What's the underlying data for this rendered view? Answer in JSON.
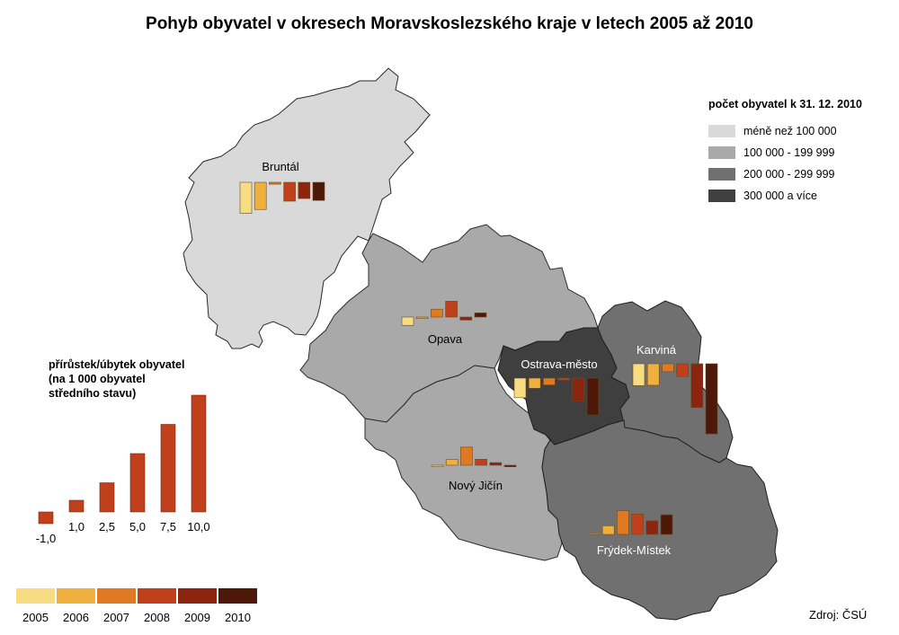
{
  "title": "Pohyb obyvatel v okresech Moravskoslezského kraje v letech 2005 až 2010",
  "population_legend": {
    "title": "počet obyvatel k 31. 12. 2010",
    "items": [
      {
        "label": "méně než 100 000",
        "color": "#d9d9d9"
      },
      {
        "label": "100 000 - 199 999",
        "color": "#a9a9a9"
      },
      {
        "label": "200 000 - 299 999",
        "color": "#707070"
      },
      {
        "label": "300 000 a více",
        "color": "#3f3f3f"
      }
    ]
  },
  "scale_legend": {
    "title_lines": [
      "přírůstek/úbytek obyvatel",
      "(na 1 000 obyvatel",
      "středního stavu)"
    ],
    "values": [
      -1.0,
      1.0,
      2.5,
      5.0,
      7.5,
      10.0
    ],
    "labels": [
      "-1,0",
      "1,0",
      "2,5",
      "5,0",
      "7,5",
      "10,0"
    ],
    "bar_color": "#c0401c"
  },
  "year_legend": {
    "years": [
      "2005",
      "2006",
      "2007",
      "2008",
      "2009",
      "2010"
    ],
    "colors": [
      "#f7dc83",
      "#f0b040",
      "#e07a22",
      "#c0401c",
      "#8b2510",
      "#4d1808"
    ]
  },
  "districts": [
    {
      "name": "Bruntál",
      "population_class": "méně než 100 000",
      "fill": "#d9d9d9"
    },
    {
      "name": "Opava",
      "population_class": "100 000 - 199 999",
      "fill": "#a9a9a9"
    },
    {
      "name": "Nový Jičín",
      "population_class": "100 000 - 199 999",
      "fill": "#a9a9a9"
    },
    {
      "name": "Ostrava-město",
      "population_class": "300 000 a více",
      "fill": "#3f3f3f"
    },
    {
      "name": "Karviná",
      "population_class": "200 000 - 299 999",
      "fill": "#707070"
    },
    {
      "name": "Frýdek-Místek",
      "population_class": "200 000 - 299 999",
      "fill": "#707070"
    }
  ],
  "chart_data": {
    "type": "bar",
    "categories": [
      "2005",
      "2006",
      "2007",
      "2008",
      "2009",
      "2010"
    ],
    "unit": "přírůstek/úbytek obyvatel (na 1 000 obyvatel středního stavu)",
    "series": [
      {
        "name": "Bruntál",
        "values": [
          -8.2,
          -7.2,
          -0.5,
          -5.0,
          -4.3,
          -4.8
        ]
      },
      {
        "name": "Opava",
        "values": [
          -2.2,
          -0.4,
          2.1,
          4.2,
          -0.8,
          1.1
        ]
      },
      {
        "name": "Ostrava-město",
        "values": [
          -5.2,
          -2.7,
          -1.8,
          -0.5,
          -6.1,
          -9.8
        ]
      },
      {
        "name": "Karviná",
        "values": [
          -5.8,
          -5.7,
          -2.1,
          -3.4,
          -11.6,
          -18.6
        ]
      },
      {
        "name": "Nový Jičín",
        "values": [
          -0.4,
          1.6,
          4.8,
          1.6,
          0.7,
          -0.4
        ]
      },
      {
        "name": "Frýdek-Místek",
        "values": [
          0.2,
          2.3,
          6.3,
          5.4,
          3.6,
          5.2
        ]
      }
    ]
  },
  "source": "Zdroj: ČSÚ"
}
